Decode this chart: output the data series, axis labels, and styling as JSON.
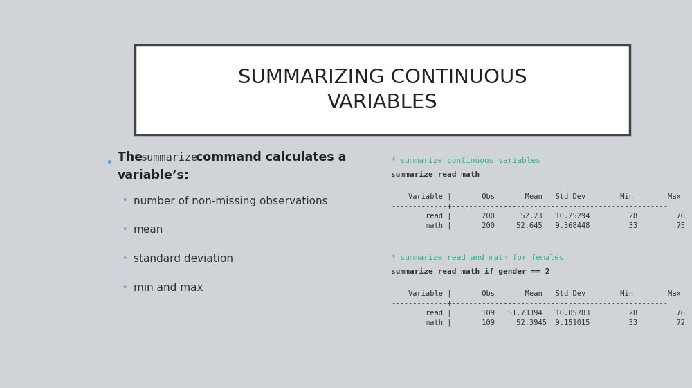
{
  "title": "SUMMARIZING CONTINUOUS\nVARIABLES",
  "bg_color": "#d0d4d8",
  "title_box_color": "#ffffff",
  "title_box_border": "#444444",
  "bullet_color": "#6a9fd8",
  "sub_bullets": [
    "number of non-missing observations",
    "mean",
    "standard deviation",
    "min and max"
  ],
  "green_color": "#2db87e",
  "code_color": "#333333",
  "section1_comment": "* summarize continuous variables",
  "section1_cmd": "summarize read math",
  "table1_header": "    Variable |       Obs       Mean   Std Dev        Min        Max",
  "table1_sep": "-------------+--------------------------------------------------",
  "table1_rows": [
    "        read |       200      52.23   10.25294         28         76",
    "        math |       200     52.645   9.368448         33         75"
  ],
  "section2_comment": "* summarize read and math for females",
  "section2_cmd": "summarize read math if gender == 2",
  "table2_header": "    Variable |       Obs       Mean   Std Dev        Min        Max",
  "table2_sep": "-------------+--------------------------------------------------",
  "table2_rows": [
    "        read |       109   51.73394   10.05783         28         76",
    "        math |       109     52.3945  9.151015         33         72"
  ]
}
